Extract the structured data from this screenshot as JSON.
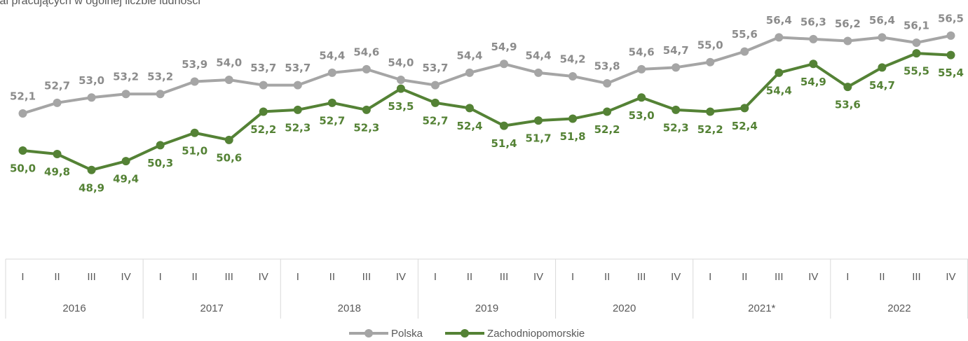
{
  "chart_data": {
    "type": "line",
    "title": "ial pracujących w ogólnej liczbie ludności",
    "categories": [
      "I",
      "II",
      "III",
      "IV",
      "I",
      "II",
      "III",
      "IV",
      "I",
      "II",
      "III",
      "IV",
      "I",
      "II",
      "III",
      "IV",
      "I",
      "II",
      "III",
      "IV",
      "I",
      "II",
      "III",
      "IV",
      "I",
      "II",
      "III",
      "IV"
    ],
    "years": [
      "2016",
      "2017",
      "2018",
      "2019",
      "2020",
      "2021*",
      "2022"
    ],
    "ylim": [
      46,
      58
    ],
    "series": [
      {
        "name": "Polska",
        "color": "#a5a5a5",
        "label_color": "#8c8c8c",
        "values": [
          52.1,
          52.7,
          53.0,
          53.2,
          53.2,
          53.9,
          54.0,
          53.7,
          53.7,
          54.4,
          54.6,
          54.0,
          53.7,
          54.4,
          54.9,
          54.4,
          54.2,
          53.8,
          54.6,
          54.7,
          55.0,
          55.6,
          56.4,
          56.3,
          56.2,
          56.4,
          56.1,
          56.5
        ],
        "value_labels": [
          "52,1",
          "52,7",
          "53,0",
          "53,2",
          "53,2",
          "53,9",
          "54,0",
          "53,7",
          "53,7",
          "54,4",
          "54,6",
          "54,0",
          "53,7",
          "54,4",
          "54,9",
          "54,4",
          "54,2",
          "53,8",
          "54,6",
          "54,7",
          "55,0",
          "55,6",
          "56,4",
          "56,3",
          "56,2",
          "56,4",
          "56,1",
          "56,5"
        ]
      },
      {
        "name": "Zachodniopomorskie",
        "color": "#548235",
        "label_color": "#548235",
        "values": [
          50.0,
          49.8,
          48.9,
          49.4,
          50.3,
          51.0,
          50.6,
          52.2,
          52.3,
          52.7,
          52.3,
          53.5,
          52.7,
          52.4,
          51.4,
          51.7,
          51.8,
          52.2,
          53.0,
          52.3,
          52.2,
          52.4,
          54.4,
          54.9,
          53.6,
          54.7,
          55.5,
          55.4
        ],
        "value_labels": [
          "50,0",
          "49,8",
          "48,9",
          "49,4",
          "50,3",
          "51,0",
          "50,6",
          "52,2",
          "52,3",
          "52,7",
          "52,3",
          "53,5",
          "52,7",
          "52,4",
          "51,4",
          "51,7",
          "51,8",
          "52,2",
          "53,0",
          "52,3",
          "52,2",
          "52,4",
          "54,4",
          "54,9",
          "53,6",
          "54,7",
          "55,5",
          "55,4"
        ]
      }
    ],
    "legend": "bottom"
  }
}
